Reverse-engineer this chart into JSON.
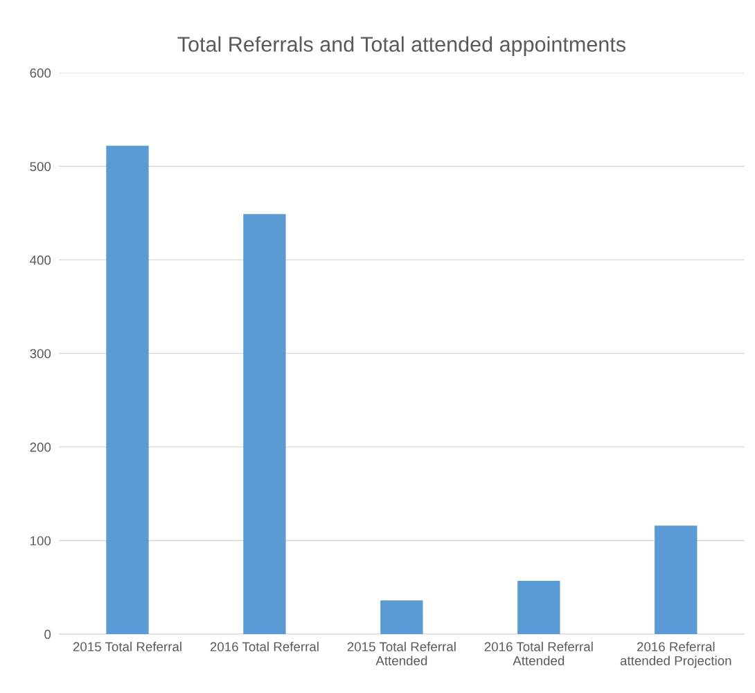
{
  "chart_data": {
    "type": "bar",
    "title": "Total Referrals and Total attended appointments",
    "categories": [
      "2015 Total Referral",
      "2016 Total Referral",
      "2015 Total Referral\nAttended",
      "2016 Total Referral\nAttended",
      "2016 Referral\nattended Projection"
    ],
    "values": [
      522,
      449,
      36,
      57,
      116
    ],
    "color": "#5b9bd5",
    "ylim": [
      0,
      600
    ],
    "yticks": [
      0,
      100,
      200,
      300,
      400,
      500,
      600
    ],
    "grid": "y"
  }
}
